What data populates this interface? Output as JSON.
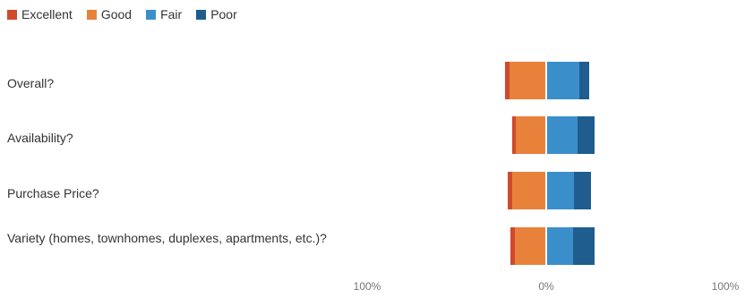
{
  "chart_data": {
    "type": "bar",
    "orientation": "horizontal",
    "stacked": true,
    "diverging": true,
    "categories": [
      "Overall?",
      "Availability?",
      "Purchase Price?",
      "Variety (homes, townhomes, duplexes, apartments, etc.)?"
    ],
    "series": [
      {
        "name": "Excellent",
        "side": "left",
        "color": "#d04a2b",
        "values": [
          2.5,
          2.0,
          2.5,
          2.5
        ]
      },
      {
        "name": "Good",
        "side": "left",
        "color": "#e8823a",
        "values": [
          20.5,
          17.0,
          19.0,
          17.5
        ]
      },
      {
        "name": "Fair",
        "side": "right",
        "color": "#3a8fcb",
        "values": [
          18.5,
          17.5,
          15.5,
          15.0
        ]
      },
      {
        "name": "Poor",
        "side": "right",
        "color": "#1f5d8e",
        "values": [
          5.5,
          9.5,
          9.5,
          12.0
        ]
      }
    ],
    "x_ticks": [
      "100%",
      "0%",
      "100%"
    ],
    "xlim": [
      -100,
      100
    ],
    "grid": false,
    "legend": "top-left"
  }
}
